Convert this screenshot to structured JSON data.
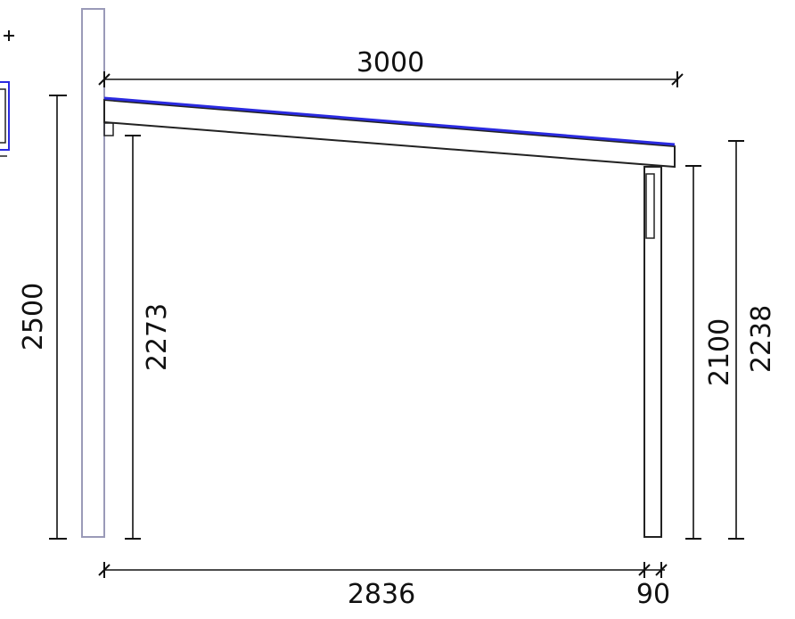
{
  "diagram": {
    "dimensions": {
      "roof_width": "3000",
      "wall_height": "2500",
      "inner_height_wall_side": "2273",
      "inner_height_post_side": "2100",
      "outer_height_post_side": "2238",
      "span_between_posts": "2836",
      "post_width": "90"
    },
    "colors": {
      "roof_covering": "#2a2ae0",
      "lines": "#222222",
      "wall_post": "#9a9ab8"
    }
  }
}
